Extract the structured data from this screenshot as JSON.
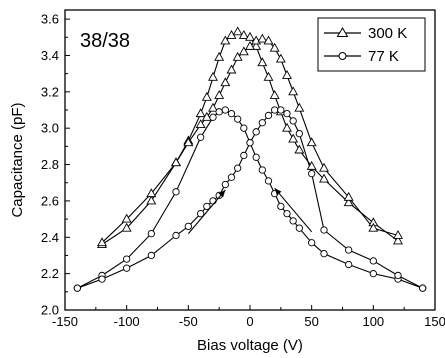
{
  "chart_data": {
    "type": "line",
    "title": "",
    "annotation": "38/38",
    "xlabel": "Bias voltage (V)",
    "ylabel": "Capacitance (pF)",
    "xlim": [
      -150,
      150
    ],
    "ylim": [
      2.0,
      3.65
    ],
    "xticks": [
      -150,
      -100,
      -50,
      0,
      50,
      100,
      150
    ],
    "xtick_labels": [
      "-150",
      "-100",
      "-50",
      "0",
      "50",
      "100",
      "150"
    ],
    "yticks": [
      2.0,
      2.2,
      2.4,
      2.6,
      2.8,
      3.0,
      3.2,
      3.4,
      3.6
    ],
    "ytick_labels": [
      "2.0",
      "2.2",
      "2.4",
      "2.6",
      "2.8",
      "3.0",
      "3.2",
      "3.4",
      "3.6"
    ],
    "legend_position": "top-right",
    "series": [
      {
        "name": "300 K",
        "marker": "triangle",
        "branches": [
          {
            "x": [
              -120,
              -100,
              -80,
              -60,
              -50,
              -40,
              -35,
              -30,
              -25,
              -20,
              -15,
              -10,
              -5,
              0,
              5,
              10,
              15,
              20,
              25,
              30,
              35,
              40,
              50,
              60,
              80,
              100,
              120
            ],
            "y": [
              2.36,
              2.45,
              2.6,
              2.81,
              2.93,
              3.08,
              3.17,
              3.28,
              3.39,
              3.48,
              3.51,
              3.53,
              3.51,
              3.5,
              3.45,
              3.36,
              3.28,
              3.18,
              3.09,
              3.0,
              2.94,
              2.88,
              2.79,
              2.72,
              2.59,
              2.48,
              2.38
            ]
          },
          {
            "x": [
              -120,
              -100,
              -80,
              -60,
              -50,
              -40,
              -35,
              -30,
              -25,
              -20,
              -15,
              -10,
              -5,
              0,
              5,
              10,
              15,
              20,
              25,
              30,
              35,
              40,
              50,
              60,
              80,
              100,
              120
            ],
            "y": [
              2.37,
              2.5,
              2.64,
              2.81,
              2.92,
              3.02,
              3.06,
              3.11,
              3.18,
              3.25,
              3.32,
              3.39,
              3.42,
              3.45,
              3.48,
              3.49,
              3.48,
              3.44,
              3.38,
              3.29,
              3.2,
              3.11,
              2.92,
              2.78,
              2.62,
              2.45,
              2.41
            ]
          }
        ]
      },
      {
        "name": "77 K",
        "marker": "circle",
        "branches": [
          {
            "x": [
              -140,
              -120,
              -100,
              -80,
              -60,
              -40,
              -30,
              -25,
              -20,
              -15,
              -10,
              -5,
              0,
              5,
              10,
              15,
              20,
              25,
              30,
              35,
              40,
              50,
              60,
              80,
              100,
              120,
              140
            ],
            "y": [
              2.12,
              2.19,
              2.28,
              2.42,
              2.65,
              2.95,
              3.06,
              3.09,
              3.1,
              3.08,
              3.05,
              3.0,
              2.92,
              2.84,
              2.77,
              2.71,
              2.64,
              2.57,
              2.53,
              2.49,
              2.45,
              2.37,
              2.31,
              2.25,
              2.2,
              2.17,
              2.12
            ]
          },
          {
            "x": [
              -140,
              -120,
              -100,
              -80,
              -60,
              -50,
              -40,
              -35,
              -30,
              -25,
              -20,
              -15,
              -10,
              -5,
              0,
              5,
              10,
              15,
              20,
              25,
              30,
              35,
              40,
              50,
              60,
              80,
              100,
              120,
              140
            ],
            "y": [
              2.12,
              2.17,
              2.23,
              2.3,
              2.41,
              2.46,
              2.53,
              2.57,
              2.6,
              2.63,
              2.69,
              2.73,
              2.78,
              2.85,
              2.92,
              2.98,
              3.03,
              3.07,
              3.1,
              3.1,
              3.08,
              3.04,
              2.97,
              2.75,
              2.44,
              2.33,
              2.27,
              2.19,
              2.12
            ]
          }
        ]
      }
    ],
    "arrows": [
      {
        "from": [
          -50,
          2.42
        ],
        "to": [
          -20,
          2.66
        ]
      },
      {
        "from": [
          50,
          2.43
        ],
        "to": [
          20,
          2.67
        ]
      }
    ]
  }
}
